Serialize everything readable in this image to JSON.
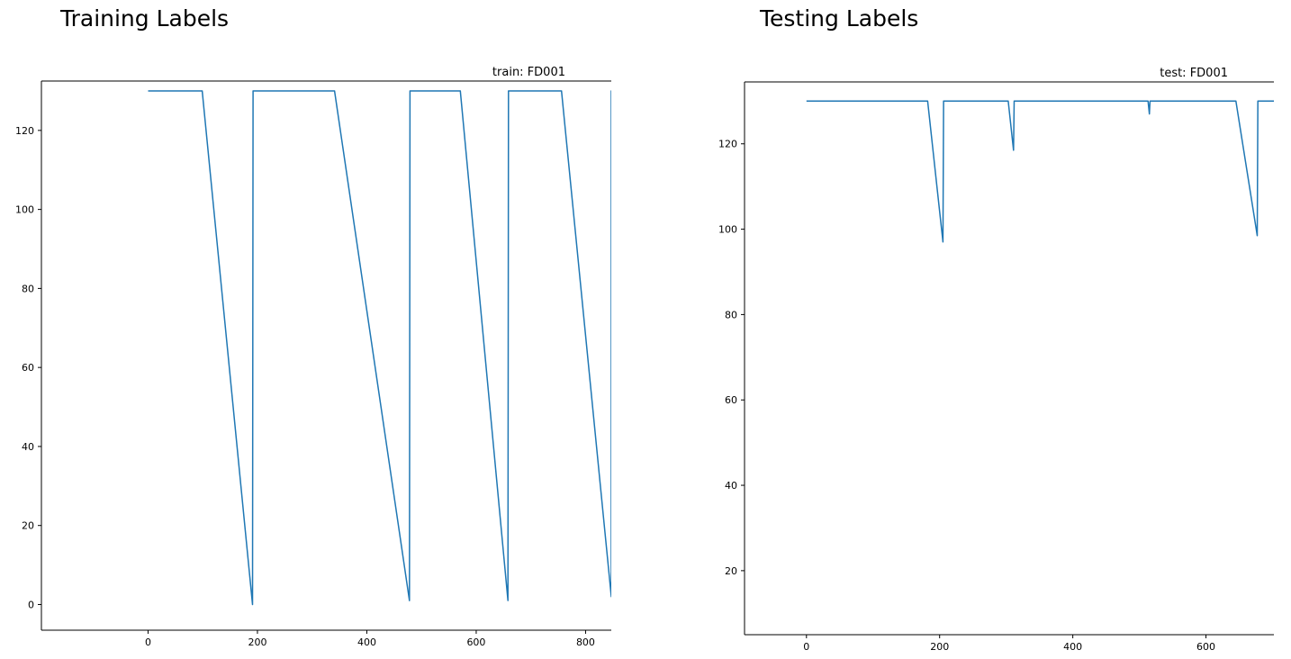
{
  "headings": {
    "train": "Training Labels",
    "test": "Testing Labels"
  },
  "chart_data": [
    {
      "type": "line",
      "title": "train: FD001",
      "color": "#1f77b4",
      "xlim": [
        -195,
        847
      ],
      "ylim": [
        -6.5,
        132.5
      ],
      "xticks": [
        0,
        200,
        400,
        600,
        800
      ],
      "yticks": [
        0,
        20,
        40,
        60,
        80,
        100,
        120
      ],
      "grid": false,
      "series": [
        {
          "x": [
            0,
            99,
            191,
            192,
            341,
            478,
            479,
            571,
            658,
            659,
            756,
            847,
            847,
            848
          ],
          "y": [
            130,
            130,
            0,
            130,
            130,
            1,
            130,
            130,
            1,
            130,
            130,
            2,
            130,
            130
          ]
        }
      ]
    },
    {
      "type": "line",
      "title": "test: FD001",
      "color": "#1f77b4",
      "xlim": [
        -93,
        702
      ],
      "ylim": [
        5,
        134.5
      ],
      "xticks": [
        0,
        200,
        400,
        600
      ],
      "yticks": [
        20,
        40,
        60,
        80,
        100,
        120
      ],
      "grid": false,
      "series": [
        {
          "x": [
            0,
            182,
            205,
            206,
            303,
            311,
            312,
            513,
            515,
            516,
            645,
            677,
            678,
            702
          ],
          "y": [
            130,
            130,
            97,
            130,
            130,
            118.5,
            130,
            130,
            127,
            130,
            130,
            98.5,
            130,
            130
          ]
        }
      ]
    }
  ]
}
